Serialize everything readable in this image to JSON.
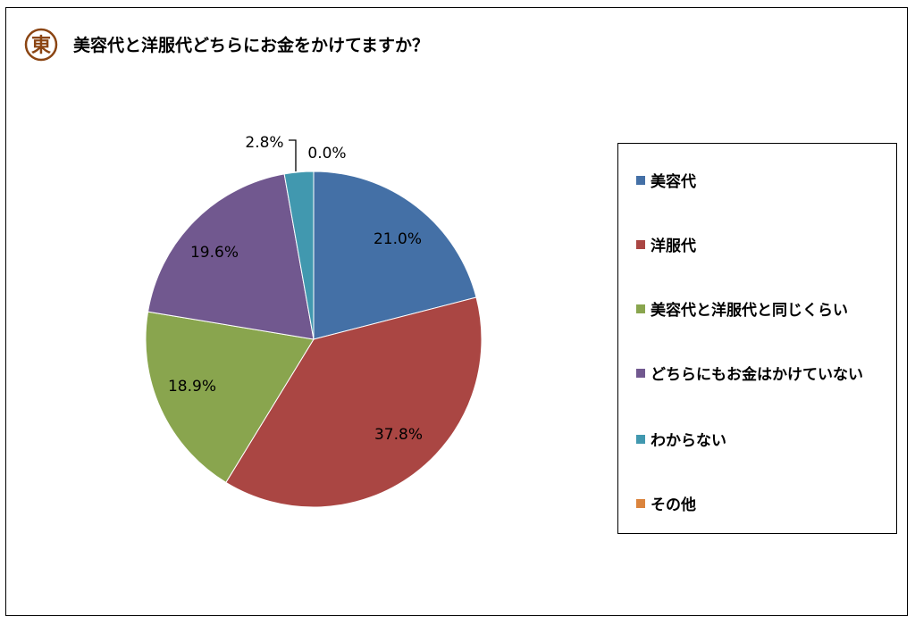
{
  "title": "美容代と洋服代どちらにお金をかけてますか？",
  "logo": {
    "char": "東",
    "color": "#8b4513"
  },
  "chart_data": {
    "type": "pie",
    "title": "美容代と洋服代どちらにお金をかけてますか？",
    "legend_position": "right",
    "start": "top, clockwise",
    "slices": [
      {
        "label": "美容代",
        "value": 21.0,
        "value_label": "21.0%",
        "color": "#4470a6"
      },
      {
        "label": "洋服代",
        "value": 37.8,
        "value_label": "37.8%",
        "color": "#aa4643"
      },
      {
        "label": "美容代と洋服代と同じくらい",
        "value": 18.9,
        "value_label": "18.9%",
        "color": "#89a54e"
      },
      {
        "label": "どちらにもお金はかけていない",
        "value": 19.6,
        "value_label": "19.6%",
        "color": "#71588f"
      },
      {
        "label": "わからない",
        "value": 2.8,
        "value_label": "2.8%",
        "color": "#4198af"
      },
      {
        "label": "その他",
        "value": 0.0,
        "value_label": "0.0%",
        "color": "#db843d"
      }
    ]
  }
}
